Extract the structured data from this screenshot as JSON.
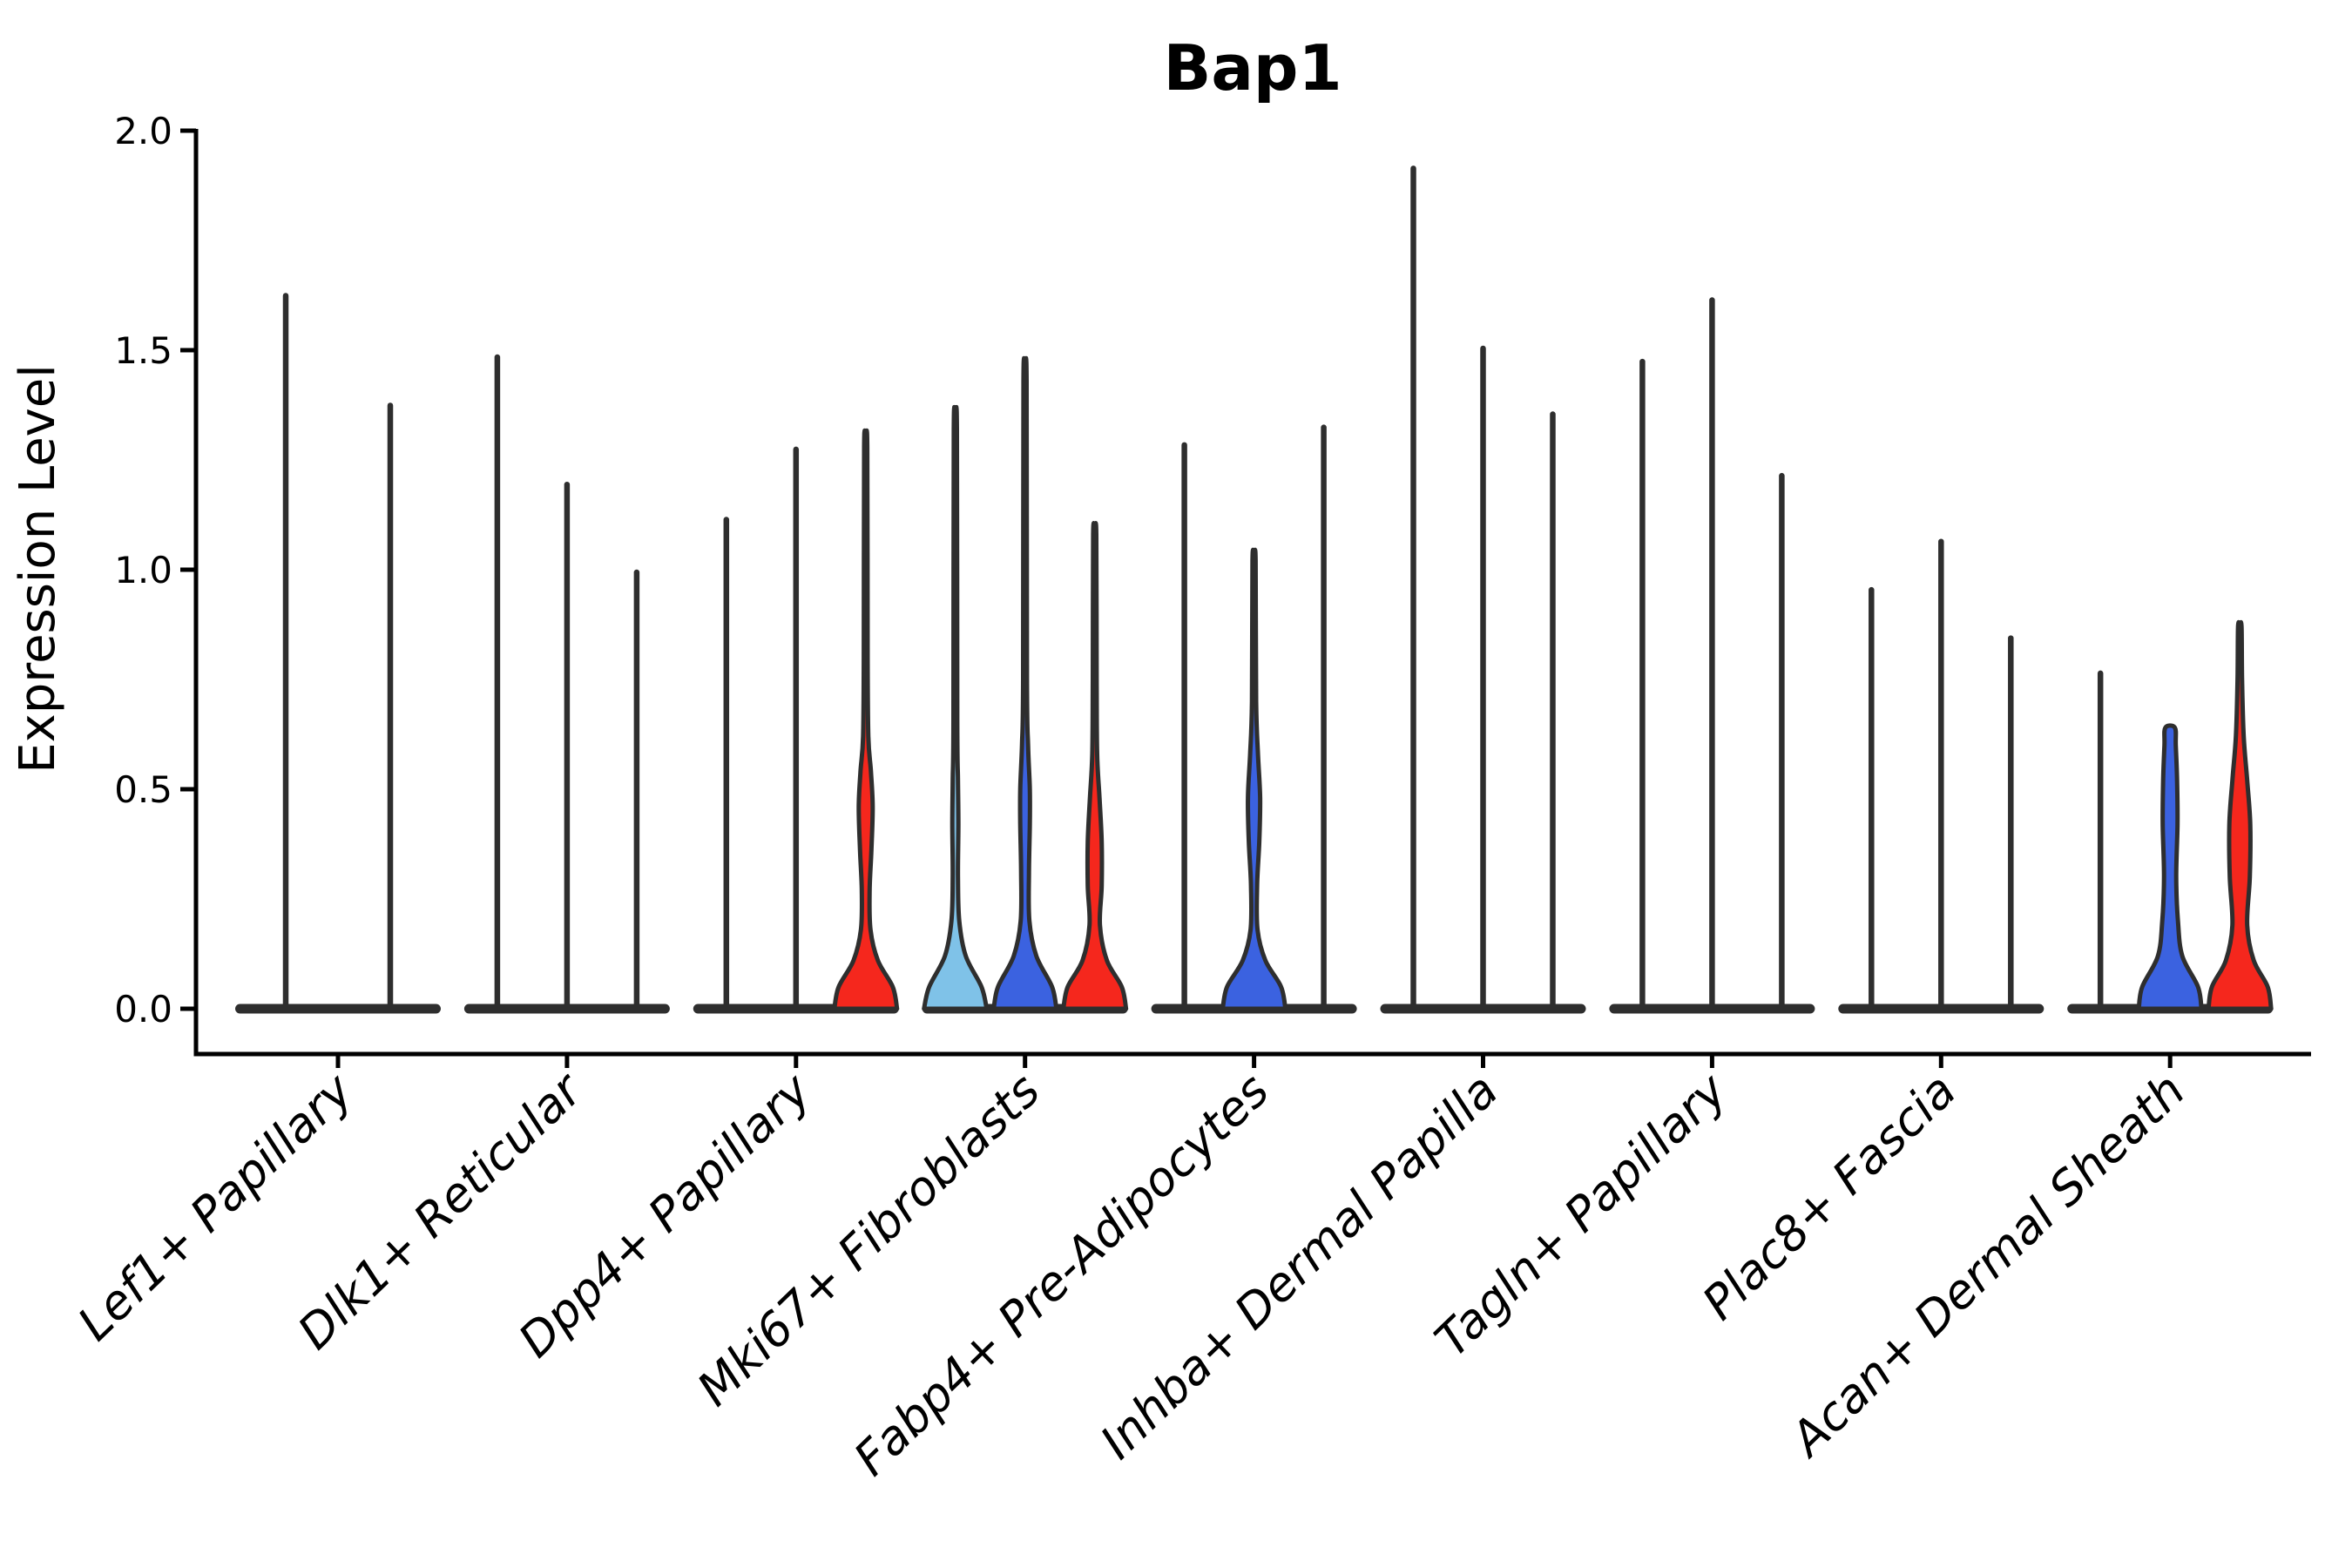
{
  "chart_data": {
    "type": "violin",
    "title": "Bap1",
    "ylabel": "Expression Level",
    "xlabel": "",
    "ylim": [
      0.0,
      2.0
    ],
    "yticks": [
      {
        "label": "0.0",
        "value": 0.0
      },
      {
        "label": "0.5",
        "value": 0.5
      },
      {
        "label": "1.0",
        "value": 1.0
      },
      {
        "label": "1.5",
        "value": 1.5
      },
      {
        "label": "2.0",
        "value": 2.0
      }
    ],
    "grid": false,
    "legend_position": "none",
    "colors": {
      "red": "#F5271D",
      "blue": "#3B62E0",
      "light_blue": "#7FC2E8",
      "ink": "#2E2E2E",
      "axis": "#000000"
    },
    "categories": [
      {
        "label": "Lef1+ Papillary",
        "violins": [
          {
            "style": "spike",
            "color": "ink",
            "max": 1.63
          },
          {
            "style": "spike",
            "color": "ink",
            "max": 1.38
          }
        ]
      },
      {
        "label": "Dlk1+ Reticular",
        "violins": [
          {
            "style": "spike",
            "color": "ink",
            "max": 1.49
          },
          {
            "style": "spike",
            "color": "ink",
            "max": 1.2
          },
          {
            "style": "spike",
            "color": "ink",
            "max": 1.0
          }
        ]
      },
      {
        "label": "Dpp4+ Papillary",
        "violins": [
          {
            "style": "spike",
            "color": "ink",
            "max": 1.12
          },
          {
            "style": "spike",
            "color": "ink",
            "max": 1.28
          },
          {
            "style": "violin",
            "color": "red",
            "max": 1.28,
            "bulge_center": 0.46,
            "profile": [
              [
                0,
                36
              ],
              [
                0.05,
                31
              ],
              [
                0.11,
                14
              ],
              [
                0.18,
                5.5
              ],
              [
                0.27,
                4.5
              ],
              [
                0.36,
                6.5
              ],
              [
                0.46,
                8
              ],
              [
                0.54,
                6
              ],
              [
                0.62,
                3
              ],
              [
                0.8,
                2.2
              ],
              [
                1.28,
                1.8
              ]
            ]
          }
        ]
      },
      {
        "label": "Mki67+ Fibroblasts",
        "violins": [
          {
            "style": "violin",
            "color": "light_blue",
            "max": 1.32,
            "bulge_center": 0.45,
            "profile": [
              [
                0,
                36
              ],
              [
                0.05,
                30
              ],
              [
                0.12,
                12
              ],
              [
                0.2,
                4.5
              ],
              [
                0.3,
                3
              ],
              [
                0.42,
                3.5
              ],
              [
                0.52,
                3
              ],
              [
                0.66,
                2.2
              ],
              [
                1.32,
                1.8
              ]
            ]
          },
          {
            "style": "violin",
            "color": "blue",
            "max": 1.43,
            "bulge_center": 0.48,
            "profile": [
              [
                0,
                36
              ],
              [
                0.05,
                31
              ],
              [
                0.12,
                13
              ],
              [
                0.2,
                5
              ],
              [
                0.31,
                4.5
              ],
              [
                0.42,
                5.5
              ],
              [
                0.5,
                5.5
              ],
              [
                0.6,
                3.5
              ],
              [
                0.75,
                2.2
              ],
              [
                1.43,
                1.8
              ]
            ]
          },
          {
            "style": "violin",
            "color": "red",
            "max": 1.08,
            "bulge_center": 0.4,
            "profile": [
              [
                0,
                36
              ],
              [
                0.05,
                31
              ],
              [
                0.11,
                14
              ],
              [
                0.19,
                6
              ],
              [
                0.28,
                8
              ],
              [
                0.38,
                8
              ],
              [
                0.48,
                5.5
              ],
              [
                0.58,
                2.8
              ],
              [
                0.75,
                2.2
              ],
              [
                1.08,
                1.8
              ]
            ]
          }
        ]
      },
      {
        "label": "Fabp4+ Pre-Adipocytes",
        "violins": [
          {
            "style": "spike",
            "color": "ink",
            "max": 1.29
          },
          {
            "style": "violin",
            "color": "blue",
            "max": 1.02,
            "bulge_center": 0.48,
            "profile": [
              [
                0,
                36
              ],
              [
                0.05,
                31
              ],
              [
                0.11,
                13
              ],
              [
                0.18,
                4
              ],
              [
                0.28,
                3.5
              ],
              [
                0.38,
                6
              ],
              [
                0.48,
                7
              ],
              [
                0.58,
                4.5
              ],
              [
                0.7,
                2.4
              ],
              [
                1.02,
                1.8
              ]
            ]
          },
          {
            "style": "spike",
            "color": "ink",
            "max": 1.33
          }
        ]
      },
      {
        "label": "Inhba+ Dermal Papilla",
        "violins": [
          {
            "style": "spike",
            "color": "ink",
            "max": 1.92
          },
          {
            "style": "spike",
            "color": "ink",
            "max": 1.51
          },
          {
            "style": "spike",
            "color": "ink",
            "max": 1.36
          }
        ]
      },
      {
        "label": "Tagln+ Papillary",
        "violins": [
          {
            "style": "spike",
            "color": "ink",
            "max": 1.48
          },
          {
            "style": "spike",
            "color": "ink",
            "max": 1.62
          },
          {
            "style": "spike",
            "color": "ink",
            "max": 1.22
          }
        ]
      },
      {
        "label": "Plac8+ Fascia",
        "violins": [
          {
            "style": "spike",
            "color": "ink",
            "max": 0.96
          },
          {
            "style": "spike",
            "color": "ink",
            "max": 1.07
          },
          {
            "style": "spike",
            "color": "ink",
            "max": 0.85
          }
        ]
      },
      {
        "label": "Acan+ Dermal Sheath",
        "violins": [
          {
            "style": "spike",
            "color": "ink",
            "max": 0.77
          },
          {
            "style": "violin",
            "color": "blue",
            "max": 0.64,
            "blunt_top": true,
            "bulge_center": 0.45,
            "profile": [
              [
                0,
                36
              ],
              [
                0.05,
                32
              ],
              [
                0.12,
                14
              ],
              [
                0.2,
                9
              ],
              [
                0.3,
                7
              ],
              [
                0.42,
                8.5
              ],
              [
                0.52,
                8
              ],
              [
                0.6,
                6.5
              ],
              [
                0.64,
                5.5
              ]
            ]
          },
          {
            "style": "violin",
            "color": "red",
            "max": 0.87,
            "bulge_center": 0.42,
            "profile": [
              [
                0,
                36
              ],
              [
                0.05,
                32
              ],
              [
                0.11,
                16
              ],
              [
                0.19,
                8.5
              ],
              [
                0.3,
                11.5
              ],
              [
                0.42,
                12
              ],
              [
                0.52,
                8.5
              ],
              [
                0.62,
                4.5
              ],
              [
                0.75,
                2.6
              ],
              [
                0.87,
                2
              ]
            ]
          }
        ]
      }
    ]
  }
}
